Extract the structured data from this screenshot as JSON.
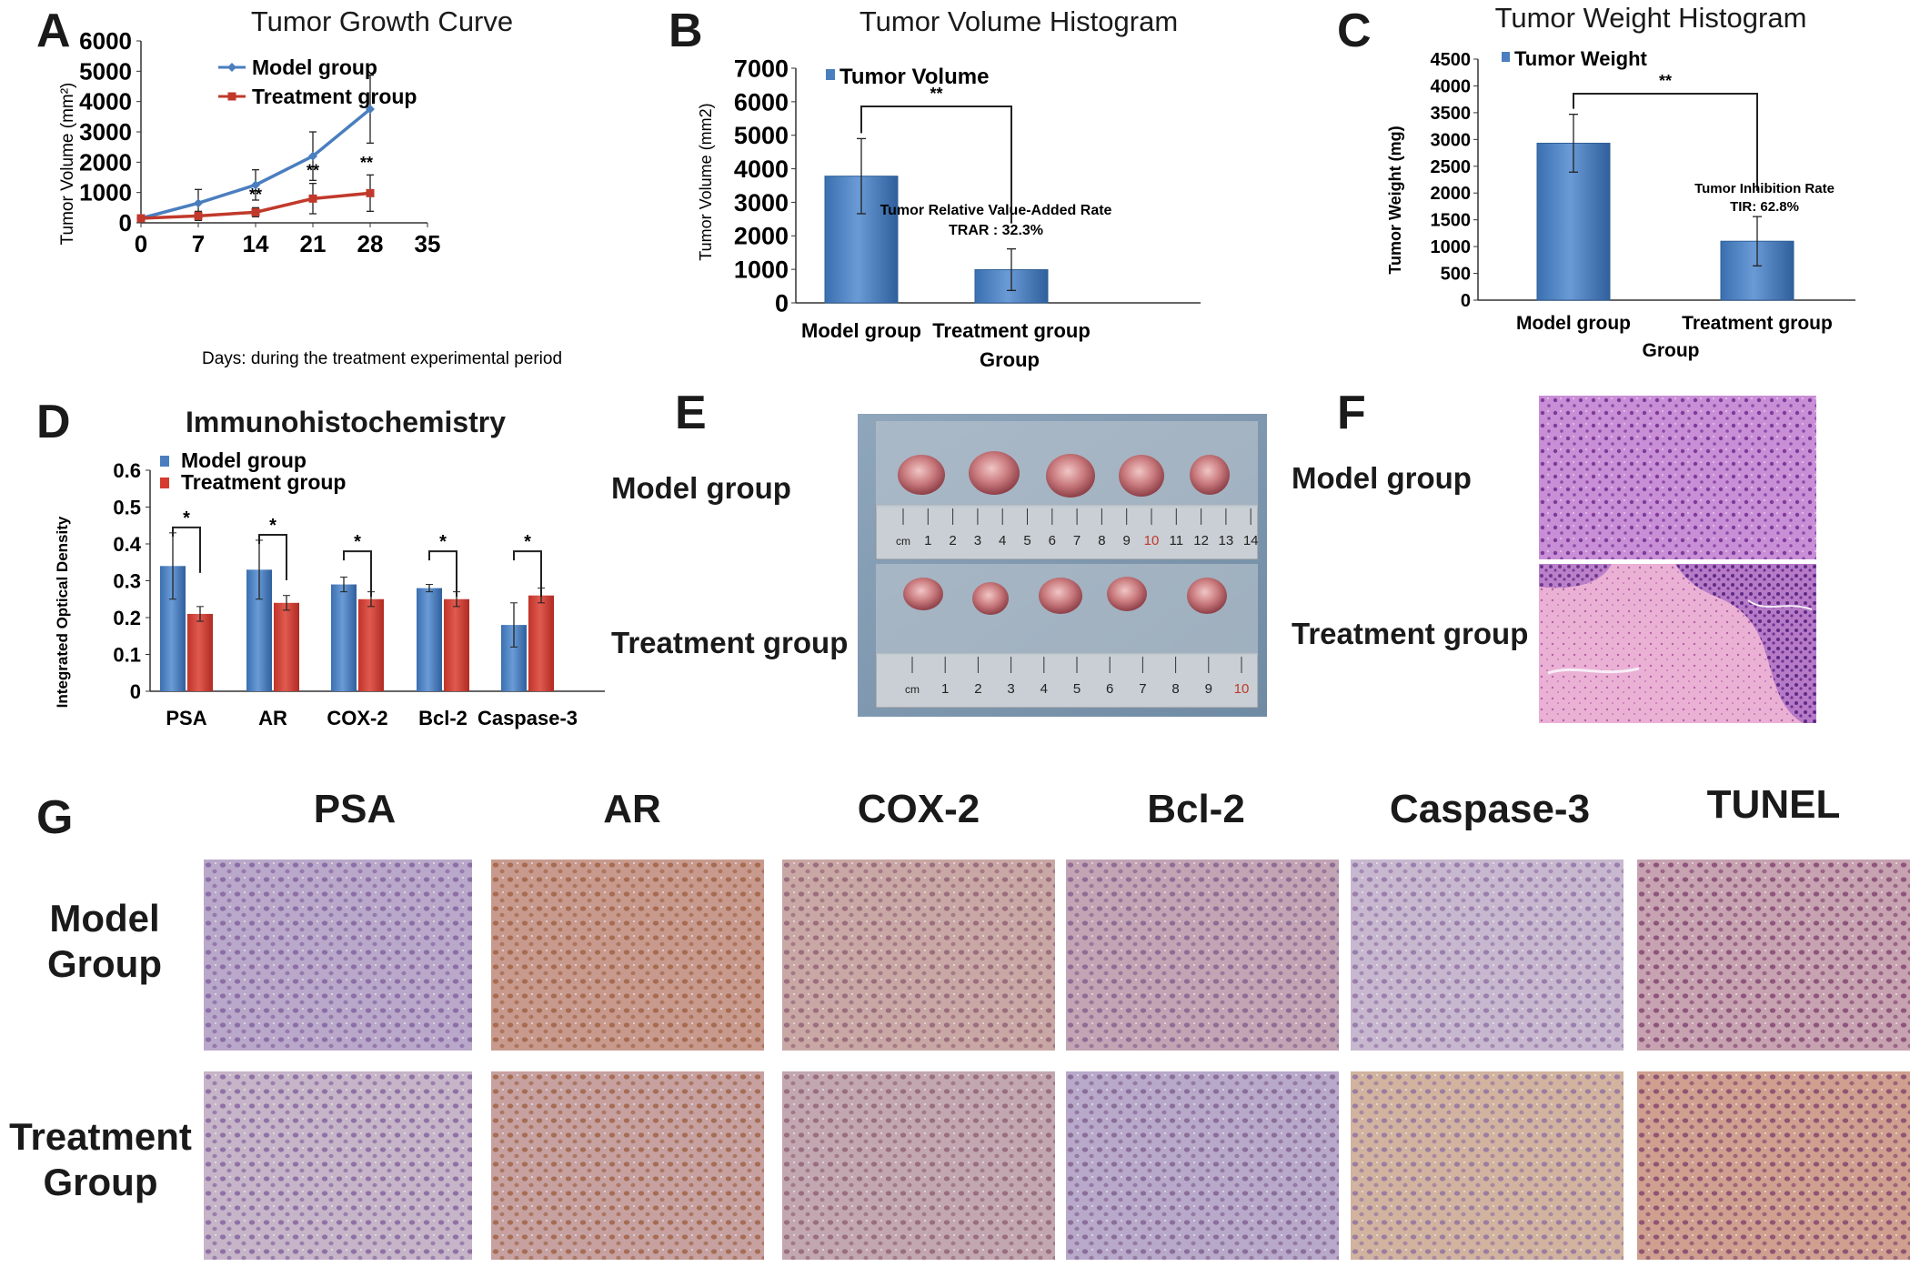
{
  "panels": {
    "A": {
      "letter": "A",
      "title": "Tumor Growth Curve",
      "xlabel": "Days: during the treatment experimental period",
      "ylabel": "Tumor Volume (mm²)",
      "legend": [
        "Model group",
        "Treatment group"
      ],
      "sig": "**",
      "colors": {
        "model": "#4a7ebf",
        "treatment": "#c0392b"
      }
    },
    "B": {
      "letter": "B",
      "title": "Tumor Volume Histogram",
      "xlabel": "Group",
      "ylabel": "Tumor Volume (mm2)",
      "legend": "Tumor Volume",
      "sig": "**",
      "annotation_line1": "Tumor Relative Value-Added Rate",
      "annotation_line2": "TRAR : 32.3%"
    },
    "C": {
      "letter": "C",
      "title": "Tumor Weight Histogram",
      "xlabel": "Group",
      "ylabel": "Tumor Weight (mg)",
      "legend": "Tumor Weight",
      "sig": "**",
      "annotation_line1": "Tumor Inhibition Rate",
      "annotation_line2": "TIR: 62.8%"
    },
    "D": {
      "letter": "D",
      "title": "Immunohistochemistry",
      "ylabel": "Integrated Optical Density",
      "legend": [
        "Model group",
        "Treatment group"
      ],
      "sig": "*"
    },
    "E": {
      "letter": "E",
      "row1": "Model group",
      "row2": "Treatment group",
      "ruler1": [
        "cm",
        "1",
        "2",
        "3",
        "4",
        "5",
        "6",
        "7",
        "8",
        "9",
        "10",
        "11",
        "12",
        "13",
        "14"
      ],
      "ruler2": [
        "cm",
        "1",
        "2",
        "3",
        "4",
        "5",
        "6",
        "7",
        "8",
        "9",
        "10"
      ]
    },
    "F": {
      "letter": "F",
      "row1": "Model group",
      "row2": "Treatment group"
    },
    "G": {
      "letter": "G",
      "columns": [
        "PSA",
        "AR",
        "COX-2",
        "Bcl-2",
        "Caspase-3",
        "TUNEL"
      ],
      "row1_line1": "Model",
      "row1_line2": "Group",
      "row2_line1": "Treatment",
      "row2_line2": "Group"
    }
  },
  "chart_data": [
    {
      "panel": "A",
      "type": "line",
      "title": "Tumor Growth Curve",
      "xlabel": "Days: during the treatment experimental period",
      "ylabel": "Tumor Volume (mm²)",
      "x": [
        0,
        7,
        14,
        21,
        28
      ],
      "xlim": [
        0,
        35
      ],
      "xticks": [
        0,
        7,
        14,
        21,
        28,
        35
      ],
      "ylim": [
        0,
        6000
      ],
      "yticks": [
        0,
        1000,
        2000,
        3000,
        4000,
        5000,
        6000
      ],
      "series": [
        {
          "name": "Model group",
          "values": [
            150,
            650,
            1250,
            2200,
            3750
          ],
          "err": [
            50,
            450,
            500,
            800,
            1120
          ]
        },
        {
          "name": "Treatment group",
          "values": [
            150,
            230,
            350,
            800,
            980
          ],
          "err": [
            50,
            150,
            150,
            500,
            600
          ]
        }
      ],
      "significance": [
        {
          "x": 14,
          "label": "**"
        },
        {
          "x": 21,
          "label": "**"
        },
        {
          "x": 28,
          "label": "**"
        }
      ],
      "legend": "top-left"
    },
    {
      "panel": "B",
      "type": "bar",
      "title": "Tumor Volume Histogram",
      "xlabel": "Group",
      "ylabel": "Tumor Volume (mm2)",
      "categories": [
        "Model group",
        "Treatment group"
      ],
      "values": [
        3780,
        990
      ],
      "err": [
        1120,
        620
      ],
      "ylim": [
        0,
        7000
      ],
      "yticks": [
        0,
        1000,
        2000,
        3000,
        4000,
        5000,
        6000,
        7000
      ],
      "series_name": "Tumor Volume",
      "legend": "top-left"
    },
    {
      "panel": "C",
      "type": "bar",
      "title": "Tumor Weight Histogram",
      "xlabel": "Group",
      "ylabel": "Tumor Weight (mg)",
      "categories": [
        "Model group",
        "Treatment group"
      ],
      "values": [
        2930,
        1100
      ],
      "err": [
        540,
        460
      ],
      "ylim": [
        0,
        4500
      ],
      "yticks": [
        0,
        500,
        1000,
        1500,
        2000,
        2500,
        3000,
        3500,
        4000,
        4500
      ],
      "series_name": "Tumor Weight",
      "legend": "top-left"
    },
    {
      "panel": "D",
      "type": "bar",
      "title": "Immunohistochemistry",
      "ylabel": "Integrated Optical Density",
      "categories": [
        "PSA",
        "AR",
        "COX-2",
        "Bcl-2",
        "Caspase-3"
      ],
      "ylim": [
        0,
        0.6
      ],
      "yticks": [
        0,
        0.1,
        0.2,
        0.3,
        0.4,
        0.5,
        0.6
      ],
      "series": [
        {
          "name": "Model group",
          "values": [
            0.34,
            0.33,
            0.29,
            0.28,
            0.18
          ],
          "err": [
            0.09,
            0.08,
            0.02,
            0.01,
            0.06
          ]
        },
        {
          "name": "Treatment group",
          "values": [
            0.21,
            0.24,
            0.25,
            0.25,
            0.26
          ],
          "err": [
            0.02,
            0.02,
            0.02,
            0.02,
            0.02
          ]
        }
      ],
      "legend": "top-left"
    }
  ]
}
